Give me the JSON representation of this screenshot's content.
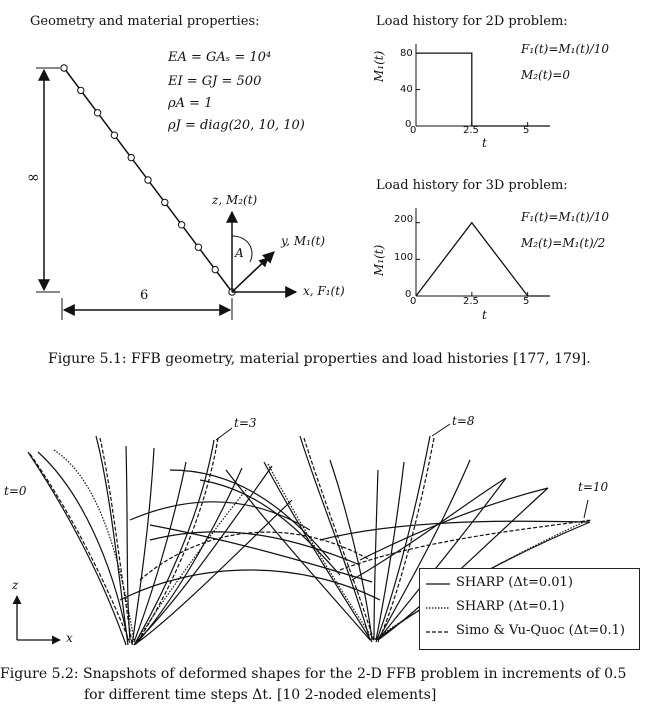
{
  "figure1": {
    "section_geometry": "Geometry and material properties:",
    "properties": [
      "EA = GAₛ = 10⁴",
      "EI = GJ = 500",
      "ρA = 1",
      "ρJ = diag(20, 10, 10)"
    ],
    "height_label": "∞",
    "width_label": "6",
    "axes": {
      "z": "z, M₂(t)",
      "y": "y, M₁(t)",
      "x": "x, F₁(t)",
      "angle": "A"
    },
    "plot_2d": {
      "heading": "Load history for 2D problem:",
      "ylabel": "M₁(t)",
      "xlabel": "t",
      "yticks": [
        "0",
        "40",
        "80"
      ],
      "xticks": [
        "0",
        "2.5",
        "5"
      ],
      "eq1": "F₁(t)=M₁(t)/10",
      "eq2": "M₂(t)=0"
    },
    "plot_3d": {
      "heading": "Load history for 3D problem:",
      "ylabel": "M₁(t)",
      "xlabel": "t",
      "yticks": [
        "0",
        "100",
        "200"
      ],
      "xticks": [
        "0",
        "2.5",
        "5"
      ],
      "eq1": "F₁(t)=M₁(t)/10",
      "eq2": "M₂(t)=M₁(t)/2"
    },
    "caption": "Figure 5.1: FFB geometry, material properties and load histories [177, 179]."
  },
  "chart_data": [
    {
      "type": "line",
      "title": "Load history for 2D problem:",
      "xlabel": "t",
      "ylabel": "M₁(t)",
      "xlim": [
        0,
        6
      ],
      "ylim": [
        0,
        90
      ],
      "series": [
        {
          "x": [
            0,
            2.5,
            2.5,
            6
          ],
          "values": [
            80,
            80,
            0,
            0
          ]
        }
      ]
    },
    {
      "type": "line",
      "title": "Load history for 3D problem:",
      "xlabel": "t",
      "ylabel": "M₁(t)",
      "xlim": [
        0,
        6
      ],
      "ylim": [
        0,
        240
      ],
      "series": [
        {
          "x": [
            0,
            2.5,
            5,
            6
          ],
          "values": [
            0,
            200,
            0,
            0
          ]
        }
      ]
    }
  ],
  "figure2": {
    "time_labels": [
      "t=0",
      "t=3",
      "t=8",
      "t=10"
    ],
    "axis_z": "z",
    "axis_x": "x",
    "legend": [
      {
        "label": "SHARP (Δt=0.01)",
        "style": "solid"
      },
      {
        "label": "SHARP (Δt=0.1)",
        "style": "dotted"
      },
      {
        "label": "Simo & Vu-Quoc (Δt=0.1)",
        "style": "dashed"
      }
    ],
    "caption_line1": "Figure 5.2: Snapshots of deformed shapes for the 2-D FFB problem in increments of 0.5",
    "caption_line2": "for different time steps Δt. [10 2-noded elements]"
  }
}
